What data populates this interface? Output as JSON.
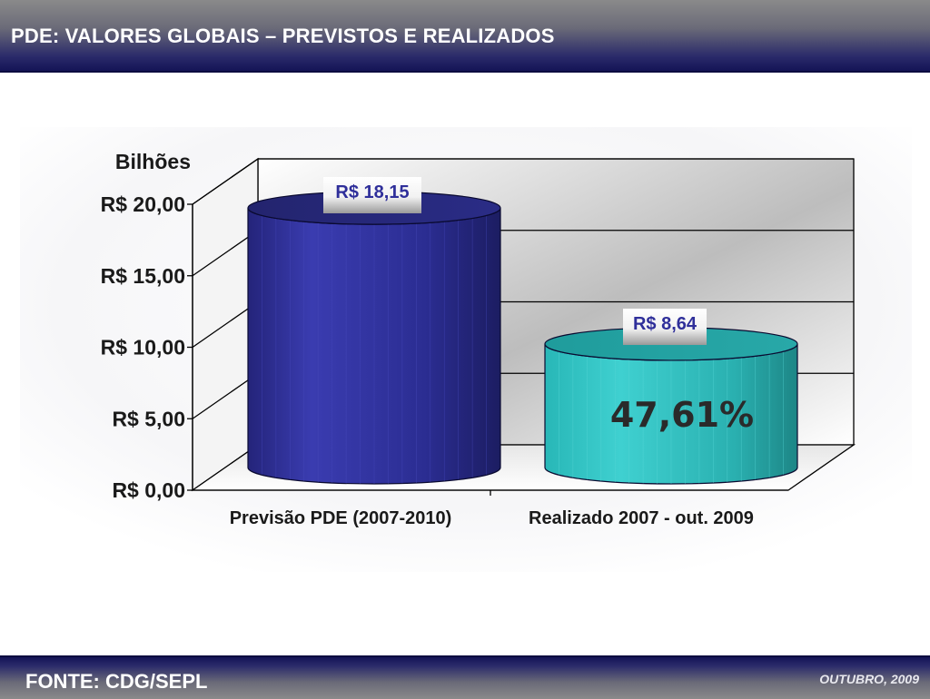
{
  "header": {
    "title": "PDE: VALORES GLOBAIS – PREVISTOS E REALIZADOS"
  },
  "footer": {
    "source": "FONTE: CDG/SEPL",
    "date": "OUTUBRO, 2009"
  },
  "colors": {
    "bar_forecast": "#2e2f96",
    "bar_realized": "#2ab8b8",
    "header_bg": "#1a1a5e",
    "value_label_text": "#2f2f9a"
  },
  "chart_data": {
    "type": "bar",
    "style": "3d-cylinder",
    "title": "",
    "ylabel": "Bilhões",
    "xlabel": "",
    "ylim": [
      0,
      20
    ],
    "yticks": [
      "R$ 0,00",
      "R$ 5,00",
      "R$ 10,00",
      "R$ 15,00",
      "R$ 20,00"
    ],
    "ytick_values": [
      0,
      5,
      10,
      15,
      20
    ],
    "grid": true,
    "legend": "none",
    "categories": [
      "Previsão PDE (2007-2010)",
      "Realizado 2007 - out. 2009"
    ],
    "values": [
      18.15,
      8.64
    ],
    "value_labels": [
      "R$ 18,15",
      "R$ 8,64"
    ],
    "annotations": [
      {
        "text": "47,61%",
        "category_index": 1
      }
    ]
  }
}
